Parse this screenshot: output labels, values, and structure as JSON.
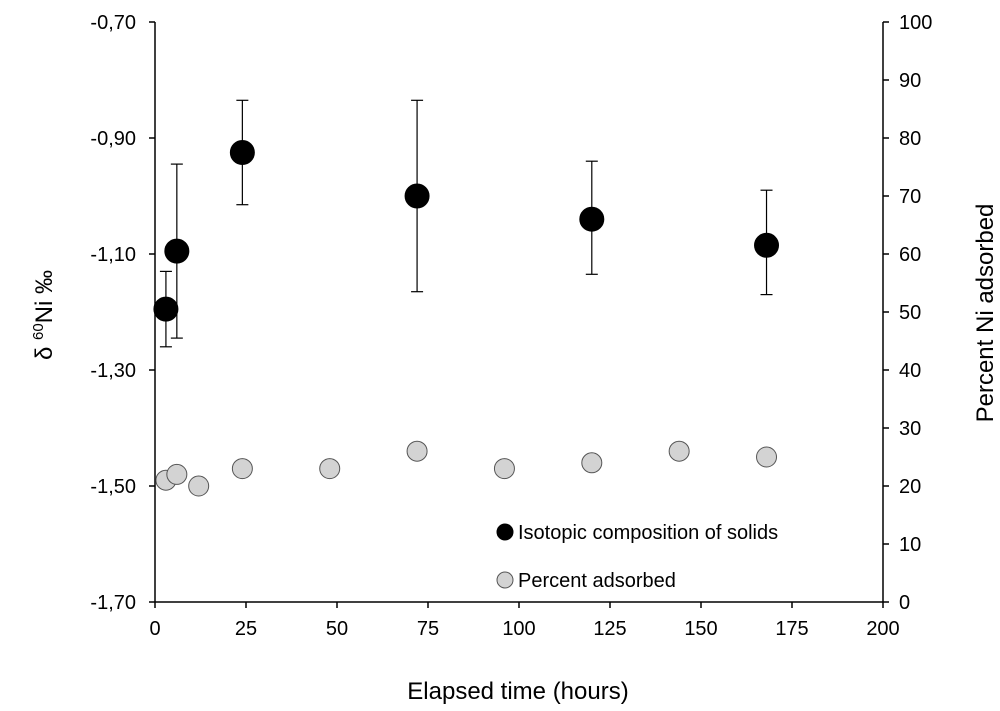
{
  "chart_data": {
    "type": "scatter",
    "xlabel": "Elapsed time (hours)",
    "ylabel_left": "δ 60Ni ‰",
    "ylabel_left_parts": {
      "prefix": "δ ",
      "superscript": "60",
      "suffix": "Ni ‰"
    },
    "ylabel_right": "Percent Ni adsorbed",
    "xlim": [
      0,
      200
    ],
    "x_ticks": [
      "0",
      "25",
      "50",
      "75",
      "100",
      "125",
      "150",
      "175",
      "200"
    ],
    "ylim_left": [
      -1.7,
      -0.7
    ],
    "y_left_ticks": [
      "-0,70",
      "-0,90",
      "-1,10",
      "-1,30",
      "-1,50",
      "-1,70"
    ],
    "ylim_right": [
      0,
      100
    ],
    "y_right_ticks": [
      "100",
      "90",
      "80",
      "70",
      "60",
      "50",
      "40",
      "30",
      "20",
      "10",
      "0"
    ],
    "grid": false,
    "legend_position": "bottom-right",
    "series": [
      {
        "name": "Isotopic composition of solids",
        "axis": "left",
        "color": "#000000",
        "x": [
          3,
          6,
          24,
          72,
          120,
          168
        ],
        "y": [
          -1.195,
          -1.095,
          -0.925,
          -1.0,
          -1.04,
          -1.085
        ],
        "err_low": [
          -1.26,
          -1.245,
          -1.015,
          -1.165,
          -1.135,
          -1.17
        ],
        "err_high": [
          -1.13,
          -0.945,
          -0.835,
          -0.835,
          -0.94,
          -0.99
        ]
      },
      {
        "name": "Percent adsorbed",
        "axis": "right",
        "color": "#d3d3d3",
        "x": [
          3,
          6,
          12,
          24,
          48,
          72,
          96,
          120,
          144,
          168
        ],
        "y": [
          21,
          22,
          20,
          23,
          23,
          26,
          23,
          24,
          26,
          25
        ]
      }
    ]
  }
}
